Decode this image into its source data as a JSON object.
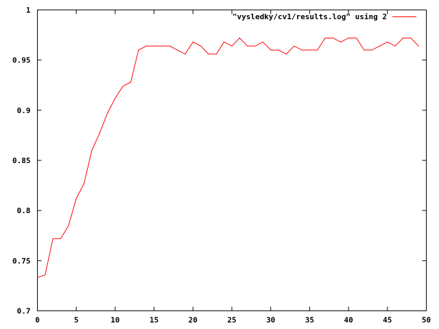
{
  "chart_data": {
    "type": "line",
    "title": "",
    "xlabel": "",
    "ylabel": "",
    "xlim": [
      0,
      50
    ],
    "ylim": [
      0.7,
      1
    ],
    "x_ticks": [
      0,
      5,
      10,
      15,
      20,
      25,
      30,
      35,
      40,
      45,
      50
    ],
    "x_tick_labels": [
      "0",
      "5",
      "10",
      "15",
      "20",
      "25",
      "30",
      "35",
      "40",
      "45",
      "50"
    ],
    "y_ticks": [
      0.7,
      0.75,
      0.8,
      0.85,
      0.9,
      0.95,
      1
    ],
    "y_tick_labels": [
      "0.7",
      "0.75",
      "0.8",
      "0.85",
      "0.9",
      "0.95",
      "1"
    ],
    "grid": false,
    "legend_position": "top-right",
    "series": [
      {
        "name": "\"vysledky/cv1/results.log\" using 2",
        "color": "#ff0000",
        "x": [
          0,
          1,
          2,
          3,
          4,
          5,
          6,
          7,
          8,
          9,
          10,
          11,
          12,
          13,
          14,
          15,
          16,
          17,
          18,
          19,
          20,
          21,
          22,
          23,
          24,
          25,
          26,
          27,
          28,
          29,
          30,
          31,
          32,
          33,
          34,
          35,
          36,
          37,
          38,
          39,
          40,
          41,
          42,
          43,
          44,
          45,
          46,
          47,
          48,
          49
        ],
        "values": [
          0.733,
          0.736,
          0.772,
          0.772,
          0.785,
          0.812,
          0.827,
          0.86,
          0.877,
          0.897,
          0.912,
          0.924,
          0.928,
          0.96,
          0.964,
          0.964,
          0.964,
          0.964,
          0.96,
          0.956,
          0.968,
          0.964,
          0.956,
          0.956,
          0.968,
          0.964,
          0.972,
          0.964,
          0.964,
          0.968,
          0.96,
          0.96,
          0.956,
          0.964,
          0.96,
          0.96,
          0.96,
          0.972,
          0.972,
          0.968,
          0.972,
          0.972,
          0.96,
          0.96,
          0.964,
          0.968,
          0.964,
          0.972,
          0.972,
          0.964
        ]
      }
    ]
  }
}
